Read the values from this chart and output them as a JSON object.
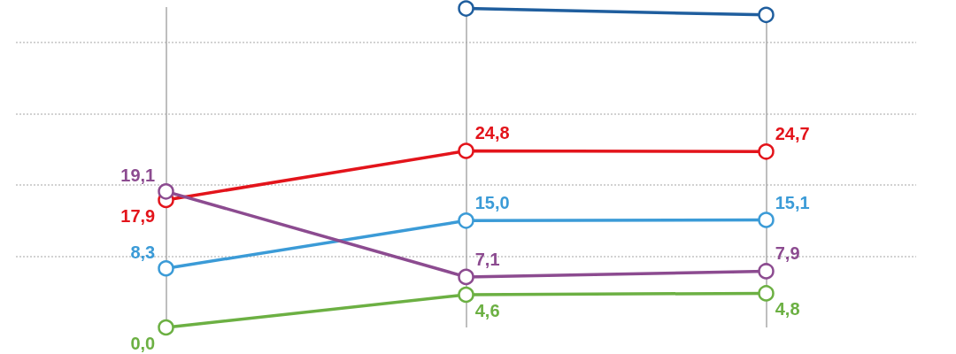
{
  "chart_data": {
    "type": "line",
    "categories": [
      null,
      null,
      null
    ],
    "series": [
      {
        "color": "#1f5e9e",
        "values": [
          null,
          44.8,
          43.9
        ]
      },
      {
        "color": "#e3141b",
        "values": [
          17.9,
          24.8,
          24.7
        ],
        "value_labels": [
          "17,9",
          "24,8",
          "24,7"
        ]
      },
      {
        "color": "#3b9bd7",
        "values": [
          8.3,
          15.0,
          15.1
        ],
        "value_labels": [
          "8,3",
          "15,0",
          "15,1"
        ]
      },
      {
        "color": "#8c4b90",
        "values": [
          19.1,
          7.1,
          7.9
        ],
        "value_labels": [
          "19,1",
          "7,1",
          "7,9"
        ]
      },
      {
        "color": "#6cb043",
        "values": [
          0.0,
          4.6,
          4.8
        ],
        "value_labels": [
          "0,0",
          "4,6",
          "4,8"
        ]
      }
    ],
    "ylim": [
      0,
      45
    ],
    "yticks": [
      {
        "value": 10,
        "label": null
      },
      {
        "value": 20,
        "label": null
      },
      {
        "value": 30,
        "label": null
      },
      {
        "value": 40,
        "label": null
      }
    ],
    "grid": true,
    "marker": "circle",
    "line_style": "solid"
  }
}
